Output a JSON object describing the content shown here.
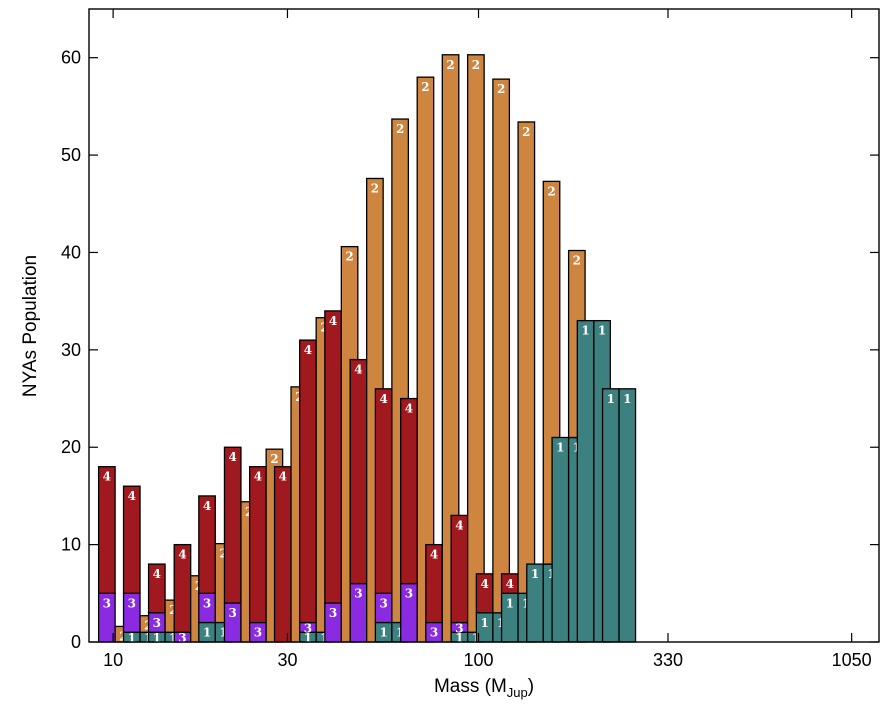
{
  "chart_data": {
    "type": "bar",
    "xlabel": "Mass (M",
    "xlabel_sub": "Jup",
    "xlabel_close": ")",
    "ylabel": "NYAs Population",
    "xlim": [
      0.934,
      3.096
    ],
    "ylim": [
      0,
      65
    ],
    "x_scale": "log10",
    "x_ticks": [
      {
        "label": "10",
        "v": 10
      },
      {
        "label": "30",
        "v": 30
      },
      {
        "label": "100",
        "v": 100
      },
      {
        "label": "330",
        "v": 330
      },
      {
        "label": "1050",
        "v": 1050
      }
    ],
    "y_ticks": [
      0,
      10,
      20,
      30,
      40,
      50,
      60
    ],
    "colors": {
      "1": "#3d8080",
      "2": "#cd853f",
      "3": "#8a2be2",
      "4": "#a0191e"
    },
    "bars": [
      {
        "mass": 10.0,
        "pair": [
          {
            "s": [
              [
                3,
                5
              ],
              [
                4,
                13
              ]
            ]
          },
          {
            "s": [
              [
                2,
                1.6
              ]
            ]
          }
        ]
      },
      {
        "mass": 11.7,
        "pair": [
          {
            "s": [
              [
                1,
                1
              ],
              [
                3,
                4
              ],
              [
                4,
                11
              ]
            ]
          },
          {
            "s": [
              [
                1,
                1
              ],
              [
                2,
                1.7
              ]
            ]
          }
        ]
      },
      {
        "mass": 13.7,
        "pair": [
          {
            "s": [
              [
                1,
                1
              ],
              [
                3,
                2
              ],
              [
                4,
                5
              ]
            ]
          },
          {
            "s": [
              [
                1,
                1
              ],
              [
                2,
                3.3
              ]
            ]
          }
        ]
      },
      {
        "mass": 16.1,
        "pair": [
          {
            "s": [
              [
                3,
                1
              ],
              [
                4,
                9
              ]
            ]
          },
          {
            "s": [
              [
                2,
                6.8
              ]
            ]
          }
        ]
      },
      {
        "mass": 18.8,
        "pair": [
          {
            "s": [
              [
                1,
                2
              ],
              [
                3,
                3
              ],
              [
                4,
                10
              ]
            ]
          },
          {
            "s": [
              [
                1,
                2
              ],
              [
                2,
                8.1
              ]
            ]
          }
        ]
      },
      {
        "mass": 22.1,
        "pair": [
          {
            "s": [
              [
                3,
                4
              ],
              [
                4,
                16
              ]
            ]
          },
          {
            "s": [
              [
                2,
                14.4
              ]
            ]
          }
        ]
      },
      {
        "mass": 25.9,
        "pair": [
          {
            "s": [
              [
                3,
                2
              ],
              [
                4,
                16
              ]
            ]
          },
          {
            "s": [
              [
                2,
                19.8
              ]
            ]
          }
        ]
      },
      {
        "mass": 30.3,
        "pair": [
          {
            "s": [
              [
                4,
                18
              ]
            ]
          },
          {
            "s": [
              [
                2,
                26.2
              ]
            ]
          }
        ]
      },
      {
        "mass": 35.5,
        "pair": [
          {
            "s": [
              [
                1,
                1
              ],
              [
                3,
                1
              ],
              [
                4,
                29
              ]
            ]
          },
          {
            "s": [
              [
                1,
                1
              ],
              [
                2,
                32.3
              ]
            ]
          }
        ]
      },
      {
        "mass": 41.6,
        "pair": [
          {
            "s": [
              [
                3,
                4
              ],
              [
                4,
                30
              ]
            ]
          },
          {
            "s": [
              [
                2,
                40.6
              ]
            ]
          }
        ]
      },
      {
        "mass": 48.8,
        "pair": [
          {
            "s": [
              [
                3,
                6
              ],
              [
                4,
                23
              ]
            ]
          },
          {
            "s": [
              [
                2,
                47.6
              ]
            ]
          }
        ]
      },
      {
        "mass": 57.2,
        "pair": [
          {
            "s": [
              [
                1,
                2
              ],
              [
                3,
                3
              ],
              [
                4,
                21
              ]
            ]
          },
          {
            "s": [
              [
                1,
                2
              ],
              [
                2,
                51.7
              ]
            ]
          }
        ]
      },
      {
        "mass": 67.1,
        "pair": [
          {
            "s": [
              [
                3,
                6
              ],
              [
                4,
                19
              ]
            ]
          },
          {
            "s": [
              [
                2,
                58
              ]
            ]
          }
        ]
      },
      {
        "mass": 78.6,
        "pair": [
          {
            "s": [
              [
                3,
                2
              ],
              [
                4,
                8
              ]
            ]
          },
          {
            "s": [
              [
                2,
                60.3
              ]
            ]
          }
        ]
      },
      {
        "mass": 92.2,
        "pair": [
          {
            "s": [
              [
                1,
                1
              ],
              [
                3,
                1
              ],
              [
                4,
                11
              ]
            ]
          },
          {
            "s": [
              [
                1,
                1
              ],
              [
                2,
                59.3
              ]
            ]
          }
        ]
      },
      {
        "mass": 108.1,
        "pair": [
          {
            "s": [
              [
                1,
                3
              ],
              [
                4,
                4
              ]
            ]
          },
          {
            "s": [
              [
                1,
                3
              ],
              [
                2,
                54.8
              ]
            ]
          }
        ]
      },
      {
        "mass": 126.7,
        "pair": [
          {
            "s": [
              [
                1,
                5
              ],
              [
                4,
                2
              ]
            ]
          },
          {
            "s": [
              [
                1,
                5
              ],
              [
                2,
                48.4
              ]
            ]
          }
        ]
      },
      {
        "mass": 148.5,
        "pair": [
          {
            "s": [
              [
                1,
                8
              ]
            ]
          },
          {
            "s": [
              [
                1,
                8
              ],
              [
                2,
                39.3
              ]
            ]
          }
        ]
      },
      {
        "mass": 174.2,
        "pair": [
          {
            "s": [
              [
                1,
                21
              ]
            ]
          },
          {
            "s": [
              [
                1,
                21
              ],
              [
                2,
                19.2
              ]
            ]
          }
        ]
      },
      {
        "mass": 204.2,
        "pair": [
          {
            "s": [
              [
                1,
                33
              ]
            ]
          },
          {
            "s": [
              [
                1,
                33
              ]
            ]
          }
        ]
      },
      {
        "mass": 239.4,
        "pair": [
          {
            "s": [
              [
                1,
                26
              ]
            ]
          },
          {
            "s": [
              [
                1,
                26
              ]
            ]
          }
        ]
      }
    ]
  }
}
